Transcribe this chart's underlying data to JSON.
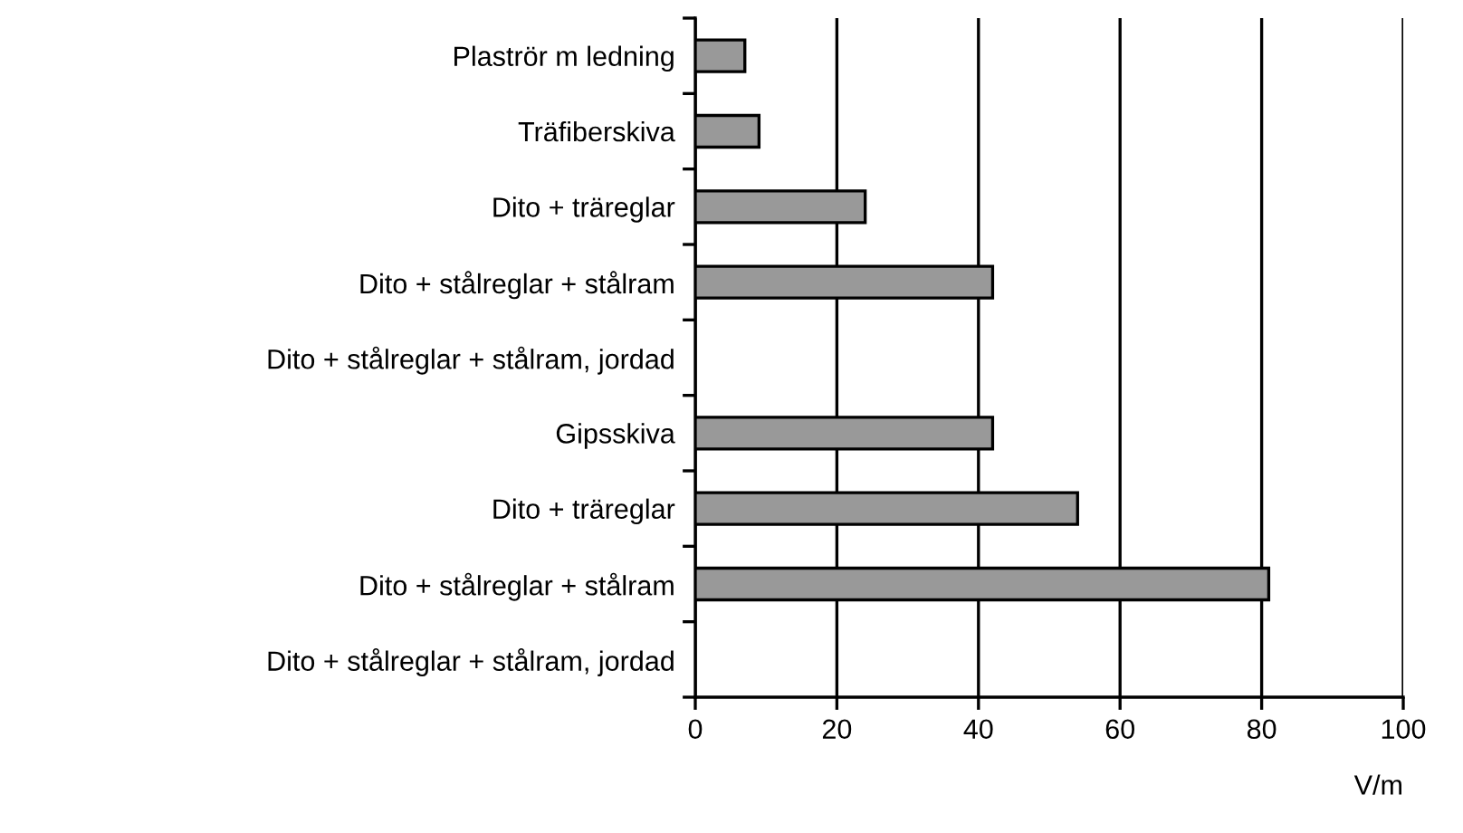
{
  "chart_data": {
    "type": "bar",
    "orientation": "horizontal",
    "xlabel": "V/m",
    "categories": [
      "Plaströr m ledning",
      "Träfiberskiva",
      "Dito + träreglar",
      "Dito + stålreglar + stålram",
      "Dito + stålreglar + stålram, jordad",
      "Gipsskiva",
      "Dito + träreglar",
      "Dito + stålreglar + stålram",
      "Dito + stålreglar + stålram, jordad"
    ],
    "values": [
      7,
      9,
      24,
      42,
      null,
      42,
      54,
      81,
      null
    ],
    "color": "#999999",
    "xlim": [
      0,
      100
    ],
    "xticks": [
      0,
      20,
      40,
      60,
      80,
      100
    ],
    "grid": "x"
  }
}
